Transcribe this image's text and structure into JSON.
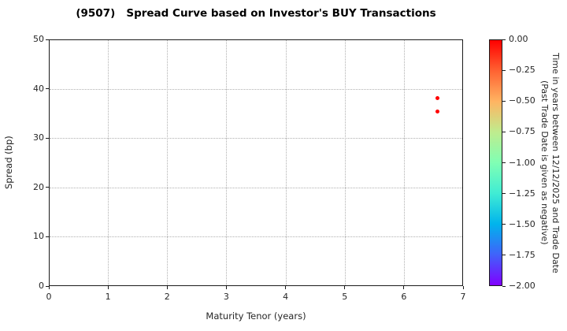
{
  "chart_data": {
    "type": "scatter",
    "title": "(9507)   Spread Curve based on Investor's BUY Transactions",
    "xlabel": "Maturity Tenor (years)",
    "ylabel": "Spread (bp)",
    "xlim": [
      0,
      7
    ],
    "ylim": [
      0,
      50
    ],
    "x_ticks": [
      0,
      1,
      2,
      3,
      4,
      5,
      6,
      7
    ],
    "y_ticks": [
      0,
      10,
      20,
      30,
      40,
      50
    ],
    "grid": true,
    "legend": "none",
    "series": [
      {
        "name": "buy-transactions",
        "marker": "circle",
        "marker_color": "#ff0000",
        "points": [
          {
            "x": 6.56,
            "y": 38.3,
            "time_value": 0.0
          },
          {
            "x": 6.55,
            "y": 35.6,
            "time_value": 0.0
          }
        ]
      }
    ],
    "colorbar": {
      "title_line1": "Time in years between 12/12/2025 and Trade Date",
      "title_line2": "(Past Trade Date is given as negative)",
      "vmax": 0.0,
      "vmin": -2.0,
      "tick_labels": [
        "0.00",
        "−0.25",
        "−0.50",
        "−0.75",
        "−1.00",
        "−1.25",
        "−1.50",
        "−1.75",
        "−2.00"
      ],
      "colormap": "rainbow",
      "gradient_stops": [
        "#ff0000",
        "#ff6232",
        "#ffb462",
        "#bfec8e",
        "#80ffb4",
        "#40ecd4",
        "#00b4ec",
        "#4062fa",
        "#8000ff"
      ]
    },
    "colors": {
      "grid": "#b0b0b0",
      "axis_border": "#1a1a1a",
      "text": "#262626",
      "background": "#ffffff"
    }
  }
}
